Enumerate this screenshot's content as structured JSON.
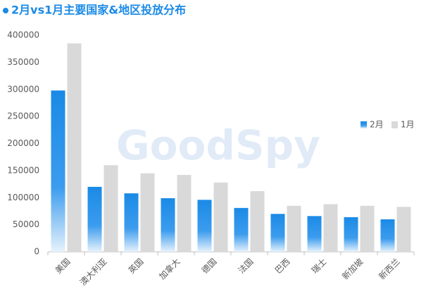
{
  "chart_data": {
    "type": "bar",
    "title": "2月vs1月主要国家&地区投放分布",
    "watermark": "GoodSpy",
    "categories": [
      "美国",
      "澳大利亚",
      "英国",
      "加拿大",
      "德国",
      "法国",
      "巴西",
      "瑞士",
      "新加坡",
      "新西兰"
    ],
    "series": [
      {
        "name": "2月",
        "color": "#1a8ae6",
        "values": [
          298000,
          120000,
          108000,
          99000,
          96000,
          81000,
          70000,
          66000,
          64000,
          60000
        ]
      },
      {
        "name": "1月",
        "color": "#d9d9d9",
        "values": [
          385000,
          160000,
          145000,
          142000,
          128000,
          112000,
          85000,
          88000,
          85000,
          83000
        ]
      }
    ],
    "ylim": [
      0,
      400000
    ],
    "yticks": [
      0,
      50000,
      100000,
      150000,
      200000,
      250000,
      300000,
      350000,
      400000
    ],
    "legend": "right"
  }
}
